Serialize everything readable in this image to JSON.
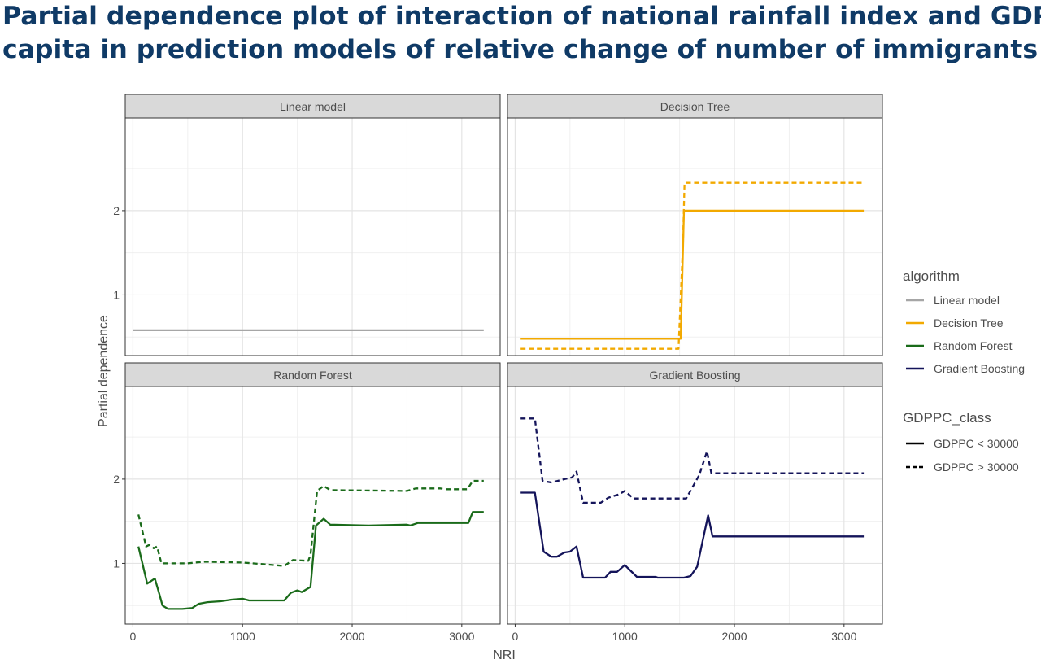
{
  "title_lines": [
    "Partial dependence plot of interaction of national rainfall index and GDP per",
    "capita in prediction models of relative change of number of immigrants"
  ],
  "chart_data": {
    "type": "line",
    "xlabel": "NRI",
    "ylabel": "Partial dependence",
    "xlim": [
      -70,
      3350
    ],
    "ylim": [
      0.28,
      3.1
    ],
    "x_ticks": [
      0,
      1000,
      2000,
      3000
    ],
    "x_tick_labels": [
      "0",
      "1000",
      "2000",
      "3000"
    ],
    "y_ticks": [
      1,
      2
    ],
    "y_tick_labels": [
      "1",
      "2"
    ],
    "grid": true,
    "legend_position": "right",
    "legend_algorithm": {
      "title": "algorithm",
      "entries": [
        {
          "label": "Linear model",
          "color": "#a6a6a6"
        },
        {
          "label": "Decision Tree",
          "color": "#f2a900"
        },
        {
          "label": "Random Forest",
          "color": "#1a6b1a"
        },
        {
          "label": "Gradient Boosting",
          "color": "#14145a"
        }
      ]
    },
    "legend_class": {
      "title": "GDPPC_class",
      "entries": [
        {
          "label": "GDPPC < 30000",
          "dash": "solid"
        },
        {
          "label": "GDPPC > 30000",
          "dash": "dashed"
        }
      ]
    },
    "panels": [
      {
        "name": "Linear model",
        "color": "#a6a6a6",
        "series": [
          {
            "class": "GDPPC < 30000",
            "dash": false,
            "points": [
              [
                0,
                0.58
              ],
              [
                3200,
                0.58
              ]
            ]
          }
        ]
      },
      {
        "name": "Decision Tree",
        "color": "#f2a900",
        "series": [
          {
            "class": "GDPPC < 30000",
            "dash": false,
            "points": [
              [
                50,
                0.48
              ],
              [
                1510,
                0.48
              ],
              [
                1540,
                2.0
              ],
              [
                3180,
                2.0
              ]
            ]
          },
          {
            "class": "GDPPC > 30000",
            "dash": true,
            "points": [
              [
                50,
                0.36
              ],
              [
                1490,
                0.36
              ],
              [
                1530,
                1.6
              ],
              [
                1545,
                2.33
              ],
              [
                3180,
                2.33
              ]
            ]
          }
        ]
      },
      {
        "name": "Random Forest",
        "color": "#1a6b1a",
        "series": [
          {
            "class": "GDPPC < 30000",
            "dash": false,
            "points": [
              [
                50,
                1.2
              ],
              [
                130,
                0.76
              ],
              [
                200,
                0.82
              ],
              [
                240,
                0.64
              ],
              [
                270,
                0.5
              ],
              [
                320,
                0.46
              ],
              [
                450,
                0.46
              ],
              [
                540,
                0.47
              ],
              [
                600,
                0.52
              ],
              [
                680,
                0.54
              ],
              [
                800,
                0.55
              ],
              [
                900,
                0.57
              ],
              [
                1000,
                0.58
              ],
              [
                1060,
                0.56
              ],
              [
                1380,
                0.56
              ],
              [
                1440,
                0.65
              ],
              [
                1500,
                0.68
              ],
              [
                1540,
                0.66
              ],
              [
                1620,
                0.72
              ],
              [
                1670,
                1.45
              ],
              [
                1740,
                1.53
              ],
              [
                1800,
                1.46
              ],
              [
                2150,
                1.45
              ],
              [
                2500,
                1.46
              ],
              [
                2530,
                1.45
              ],
              [
                2600,
                1.48
              ],
              [
                3030,
                1.48
              ],
              [
                3060,
                1.48
              ],
              [
                3100,
                1.61
              ],
              [
                3200,
                1.61
              ]
            ]
          },
          {
            "class": "GDPPC > 30000",
            "dash": true,
            "points": [
              [
                50,
                1.58
              ],
              [
                120,
                1.2
              ],
              [
                150,
                1.22
              ],
              [
                190,
                1.18
              ],
              [
                220,
                1.2
              ],
              [
                260,
                1.0
              ],
              [
                500,
                1.0
              ],
              [
                650,
                1.02
              ],
              [
                1000,
                1.01
              ],
              [
                1200,
                0.99
              ],
              [
                1380,
                0.97
              ],
              [
                1460,
                1.04
              ],
              [
                1600,
                1.03
              ],
              [
                1620,
                1.1
              ],
              [
                1680,
                1.86
              ],
              [
                1740,
                1.92
              ],
              [
                1800,
                1.87
              ],
              [
                2500,
                1.86
              ],
              [
                2580,
                1.89
              ],
              [
                2800,
                1.89
              ],
              [
                2850,
                1.88
              ],
              [
                3050,
                1.88
              ],
              [
                3100,
                1.98
              ],
              [
                3200,
                1.98
              ]
            ]
          }
        ]
      },
      {
        "name": "Gradient Boosting",
        "color": "#14145a",
        "series": [
          {
            "class": "GDPPC < 30000",
            "dash": false,
            "points": [
              [
                50,
                1.84
              ],
              [
                180,
                1.84
              ],
              [
                260,
                1.14
              ],
              [
                330,
                1.08
              ],
              [
                380,
                1.08
              ],
              [
                450,
                1.13
              ],
              [
                500,
                1.14
              ],
              [
                560,
                1.2
              ],
              [
                620,
                0.83
              ],
              [
                820,
                0.83
              ],
              [
                870,
                0.9
              ],
              [
                930,
                0.9
              ],
              [
                1000,
                0.98
              ],
              [
                1110,
                0.84
              ],
              [
                1280,
                0.84
              ],
              [
                1300,
                0.83
              ],
              [
                1540,
                0.83
              ],
              [
                1600,
                0.85
              ],
              [
                1660,
                0.96
              ],
              [
                1760,
                1.57
              ],
              [
                1800,
                1.32
              ],
              [
                3180,
                1.32
              ]
            ]
          },
          {
            "class": "GDPPC > 30000",
            "dash": true,
            "points": [
              [
                50,
                2.72
              ],
              [
                180,
                2.72
              ],
              [
                250,
                1.98
              ],
              [
                330,
                1.96
              ],
              [
                450,
                2.0
              ],
              [
                520,
                2.02
              ],
              [
                560,
                2.09
              ],
              [
                620,
                1.72
              ],
              [
                780,
                1.72
              ],
              [
                850,
                1.78
              ],
              [
                950,
                1.82
              ],
              [
                1000,
                1.86
              ],
              [
                1080,
                1.77
              ],
              [
                1560,
                1.77
              ],
              [
                1680,
                2.05
              ],
              [
                1750,
                2.33
              ],
              [
                1790,
                2.07
              ],
              [
                3180,
                2.07
              ]
            ]
          }
        ]
      }
    ]
  }
}
